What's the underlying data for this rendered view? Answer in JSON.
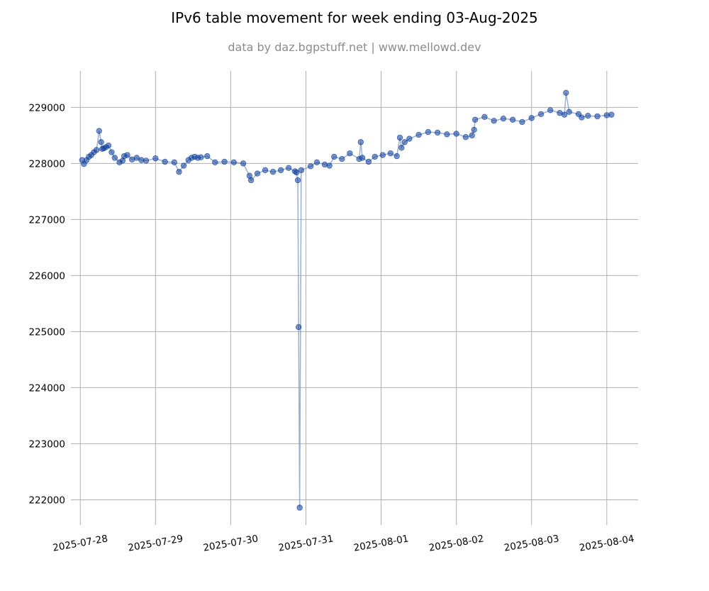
{
  "chart_data": {
    "type": "line",
    "title": "IPv6 table movement for week ending 03-Aug-2025",
    "subtitle": "data by daz.bgpstuff.net | www.mellowd.dev",
    "xlabel": "",
    "ylabel": "",
    "x_ticks": [
      "2025-07-28",
      "2025-07-29",
      "2025-07-30",
      "2025-07-31",
      "2025-08-01",
      "2025-08-02",
      "2025-08-03",
      "2025-08-04"
    ],
    "y_ticks": [
      222000,
      223000,
      224000,
      225000,
      226000,
      227000,
      228000,
      229000
    ],
    "xlim": [
      "2025-07-27T21:00",
      "2025-08-04T10:00"
    ],
    "ylim": [
      221550,
      229650
    ],
    "grid": true,
    "markers": "circle",
    "colors": {
      "line": "#7f9cc9",
      "marker": "#0b3c9a",
      "grid": "#b0b0b0"
    },
    "series": [
      {
        "x": [
          "2025-07-28T00:35",
          "2025-07-28T01:10",
          "2025-07-28T02:00",
          "2025-07-28T02:45",
          "2025-07-28T03:30",
          "2025-07-28T04:20",
          "2025-07-28T05:10",
          "2025-07-28T06:00",
          "2025-07-28T06:40",
          "2025-07-28T07:00",
          "2025-07-28T07:30",
          "2025-07-28T08:10",
          "2025-07-28T09:00",
          "2025-07-28T10:00",
          "2025-07-28T11:00",
          "2025-07-28T12:30",
          "2025-07-28T13:30",
          "2025-07-28T14:00",
          "2025-07-28T15:00",
          "2025-07-28T16:30",
          "2025-07-28T18:00",
          "2025-07-28T19:30",
          "2025-07-28T21:00",
          "2025-07-29T00:00",
          "2025-07-29T03:00",
          "2025-07-29T06:00",
          "2025-07-29T07:30",
          "2025-07-29T09:00",
          "2025-07-29T10:30",
          "2025-07-29T11:30",
          "2025-07-29T12:30",
          "2025-07-29T13:30",
          "2025-07-29T14:30",
          "2025-07-29T16:30",
          "2025-07-29T19:00",
          "2025-07-29T22:00",
          "2025-07-30T01:00",
          "2025-07-30T04:00",
          "2025-07-30T06:00",
          "2025-07-30T06:30",
          "2025-07-30T08:30",
          "2025-07-30T11:00",
          "2025-07-30T13:30",
          "2025-07-30T16:00",
          "2025-07-30T18:30",
          "2025-07-30T20:30",
          "2025-07-30T21:00",
          "2025-07-30T21:25",
          "2025-07-30T21:40",
          "2025-07-30T22:00",
          "2025-07-30T22:30",
          "2025-07-31T01:30",
          "2025-07-31T03:30",
          "2025-07-31T06:00",
          "2025-07-31T07:30",
          "2025-07-31T09:00",
          "2025-07-31T11:30",
          "2025-07-31T14:00",
          "2025-07-31T17:00",
          "2025-07-31T17:30",
          "2025-07-31T18:00",
          "2025-07-31T20:00",
          "2025-07-31T22:00",
          "2025-08-01T00:30",
          "2025-08-01T03:00",
          "2025-08-01T05:00",
          "2025-08-01T06:00",
          "2025-08-01T06:30",
          "2025-08-01T07:30",
          "2025-08-01T09:00",
          "2025-08-01T12:00",
          "2025-08-01T15:00",
          "2025-08-01T18:00",
          "2025-08-01T21:00",
          "2025-08-02T00:00",
          "2025-08-02T03:00",
          "2025-08-02T05:00",
          "2025-08-02T05:40",
          "2025-08-02T06:00",
          "2025-08-02T09:00",
          "2025-08-02T12:00",
          "2025-08-02T15:00",
          "2025-08-02T18:00",
          "2025-08-02T21:00",
          "2025-08-03T00:00",
          "2025-08-03T03:00",
          "2025-08-03T06:00",
          "2025-08-03T09:00",
          "2025-08-03T10:30",
          "2025-08-03T11:00",
          "2025-08-03T12:00",
          "2025-08-03T15:00",
          "2025-08-03T16:00",
          "2025-08-03T18:00",
          "2025-08-03T21:00",
          "2025-08-04T00:00",
          "2025-08-04T01:30"
        ],
        "y": [
          228060,
          227990,
          228060,
          228120,
          228150,
          228200,
          228240,
          228580,
          228380,
          228260,
          228270,
          228290,
          228320,
          228200,
          228100,
          228020,
          228050,
          228130,
          228150,
          228070,
          228100,
          228060,
          228050,
          228090,
          228030,
          228020,
          227850,
          227960,
          228060,
          228100,
          228120,
          228100,
          228110,
          228130,
          228020,
          228030,
          228020,
          228000,
          227780,
          227700,
          227820,
          227880,
          227850,
          227880,
          227920,
          227860,
          227840,
          227700,
          225080,
          221860,
          227880,
          227950,
          228020,
          227980,
          227960,
          228120,
          228080,
          228180,
          228080,
          228380,
          228100,
          228030,
          228120,
          228150,
          228180,
          228130,
          228460,
          228280,
          228380,
          228440,
          228510,
          228560,
          228550,
          228520,
          228530,
          228470,
          228500,
          228600,
          228780,
          228830,
          228760,
          228800,
          228780,
          228740,
          228810,
          228880,
          228950,
          228900,
          228870,
          229260,
          228920,
          228880,
          228820,
          228850,
          228840,
          228860,
          228870
        ]
      }
    ]
  }
}
